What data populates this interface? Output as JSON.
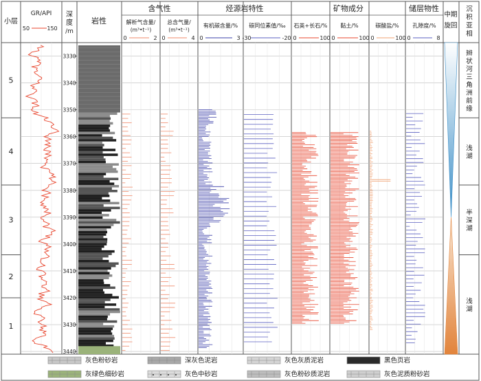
{
  "chart_data": {
    "type": "well-log",
    "title": "",
    "headers": {
      "sublayer": "小层",
      "gr": "GR/API",
      "depth": "深度/m",
      "lith": "岩性",
      "gas_group": "含气性",
      "source_group": "烃源岩特性",
      "mineral_group": "矿物成分",
      "reservoir_group": "储层物性",
      "cycle": "中期旋回",
      "facies": "沉积亚相"
    },
    "tracks": [
      {
        "key": "gr",
        "label": "GR/API",
        "min": 50,
        "max": 150,
        "tick_labels": [
          "50",
          "150"
        ],
        "color": "#e8442c"
      },
      {
        "key": "desorbed_gas",
        "label": "解析气含量/(m³•t⁻¹)",
        "min": 0,
        "max": 2,
        "tick_labels": [
          "0",
          "2"
        ],
        "color": "#f08a6a"
      },
      {
        "key": "total_gas",
        "label": "总含气量/(m³•t⁻¹)",
        "min": 0,
        "max": 4,
        "tick_labels": [
          "0",
          "4"
        ],
        "color": "#f08a6a"
      },
      {
        "key": "toc",
        "label": "有机碳含量/%",
        "min": 0,
        "max": 3,
        "tick_labels": [
          "0",
          "3"
        ],
        "color": "#3a3fa8"
      },
      {
        "key": "d13c",
        "label": "碳同位素值/‰",
        "min": -30,
        "max": -20,
        "tick_labels": [
          "-30",
          "-20"
        ],
        "color": "#5a5fc0"
      },
      {
        "key": "quartz",
        "label": "石英+长石/%",
        "min": 0,
        "max": 100,
        "tick_labels": [
          "0",
          "100"
        ],
        "color": "#e8442c"
      },
      {
        "key": "clay",
        "label": "黏土/%",
        "min": 0,
        "max": 100,
        "tick_labels": [
          "0",
          "100"
        ],
        "color": "#e8442c"
      },
      {
        "key": "carbonate",
        "label": "碳酸盐/%",
        "min": 0,
        "max": 100,
        "tick_labels": [
          "0",
          "100"
        ],
        "color": "#f0a070"
      },
      {
        "key": "porosity",
        "label": "孔隙度/%",
        "min": 0,
        "max": 8,
        "tick_labels": [
          "0",
          "8"
        ],
        "color": "#5a5fc0"
      }
    ],
    "depth_range": [
      3325,
      3441
    ],
    "depth_ticks": [
      3330,
      3340,
      3350,
      3360,
      3370,
      3380,
      3390,
      3400,
      3410,
      3420,
      3430,
      3440
    ],
    "sublayers": [
      {
        "label": "5",
        "top": 3325,
        "base": 3353
      },
      {
        "label": "4",
        "top": 3353,
        "base": 3378
      },
      {
        "label": "3",
        "top": 3378,
        "base": 3404
      },
      {
        "label": "2",
        "top": 3404,
        "base": 3420
      },
      {
        "label": "1",
        "top": 3420,
        "base": 3441
      }
    ],
    "facies": [
      {
        "label": "辫状河三角洲前缘",
        "top": 3325,
        "base": 3353
      },
      {
        "label": "浅湖",
        "top": 3353,
        "base": 3378
      },
      {
        "label": "半深湖",
        "top": 3378,
        "base": 3404
      },
      {
        "label": "浅湖",
        "top": 3404,
        "base": 3441
      }
    ],
    "cycle": {
      "turnaround_depth": 3390,
      "top": 3325,
      "base": 3441
    },
    "legend": [
      {
        "label": "灰色粉砂岩",
        "pattern": "siltstone"
      },
      {
        "label": "深灰色泥岩",
        "pattern": "darkmud"
      },
      {
        "label": "灰色灰质泥岩",
        "pattern": "limymud"
      },
      {
        "label": "黑色页岩",
        "pattern": "shale"
      },
      {
        "label": "灰绿色细砂岩",
        "pattern": "greensand"
      },
      {
        "label": "灰色中砂岩",
        "pattern": "medsand"
      },
      {
        "label": "灰色粉砂质泥岩",
        "pattern": "siltymud"
      },
      {
        "label": "灰色泥质粉砂岩",
        "pattern": "muddysilt"
      }
    ]
  }
}
